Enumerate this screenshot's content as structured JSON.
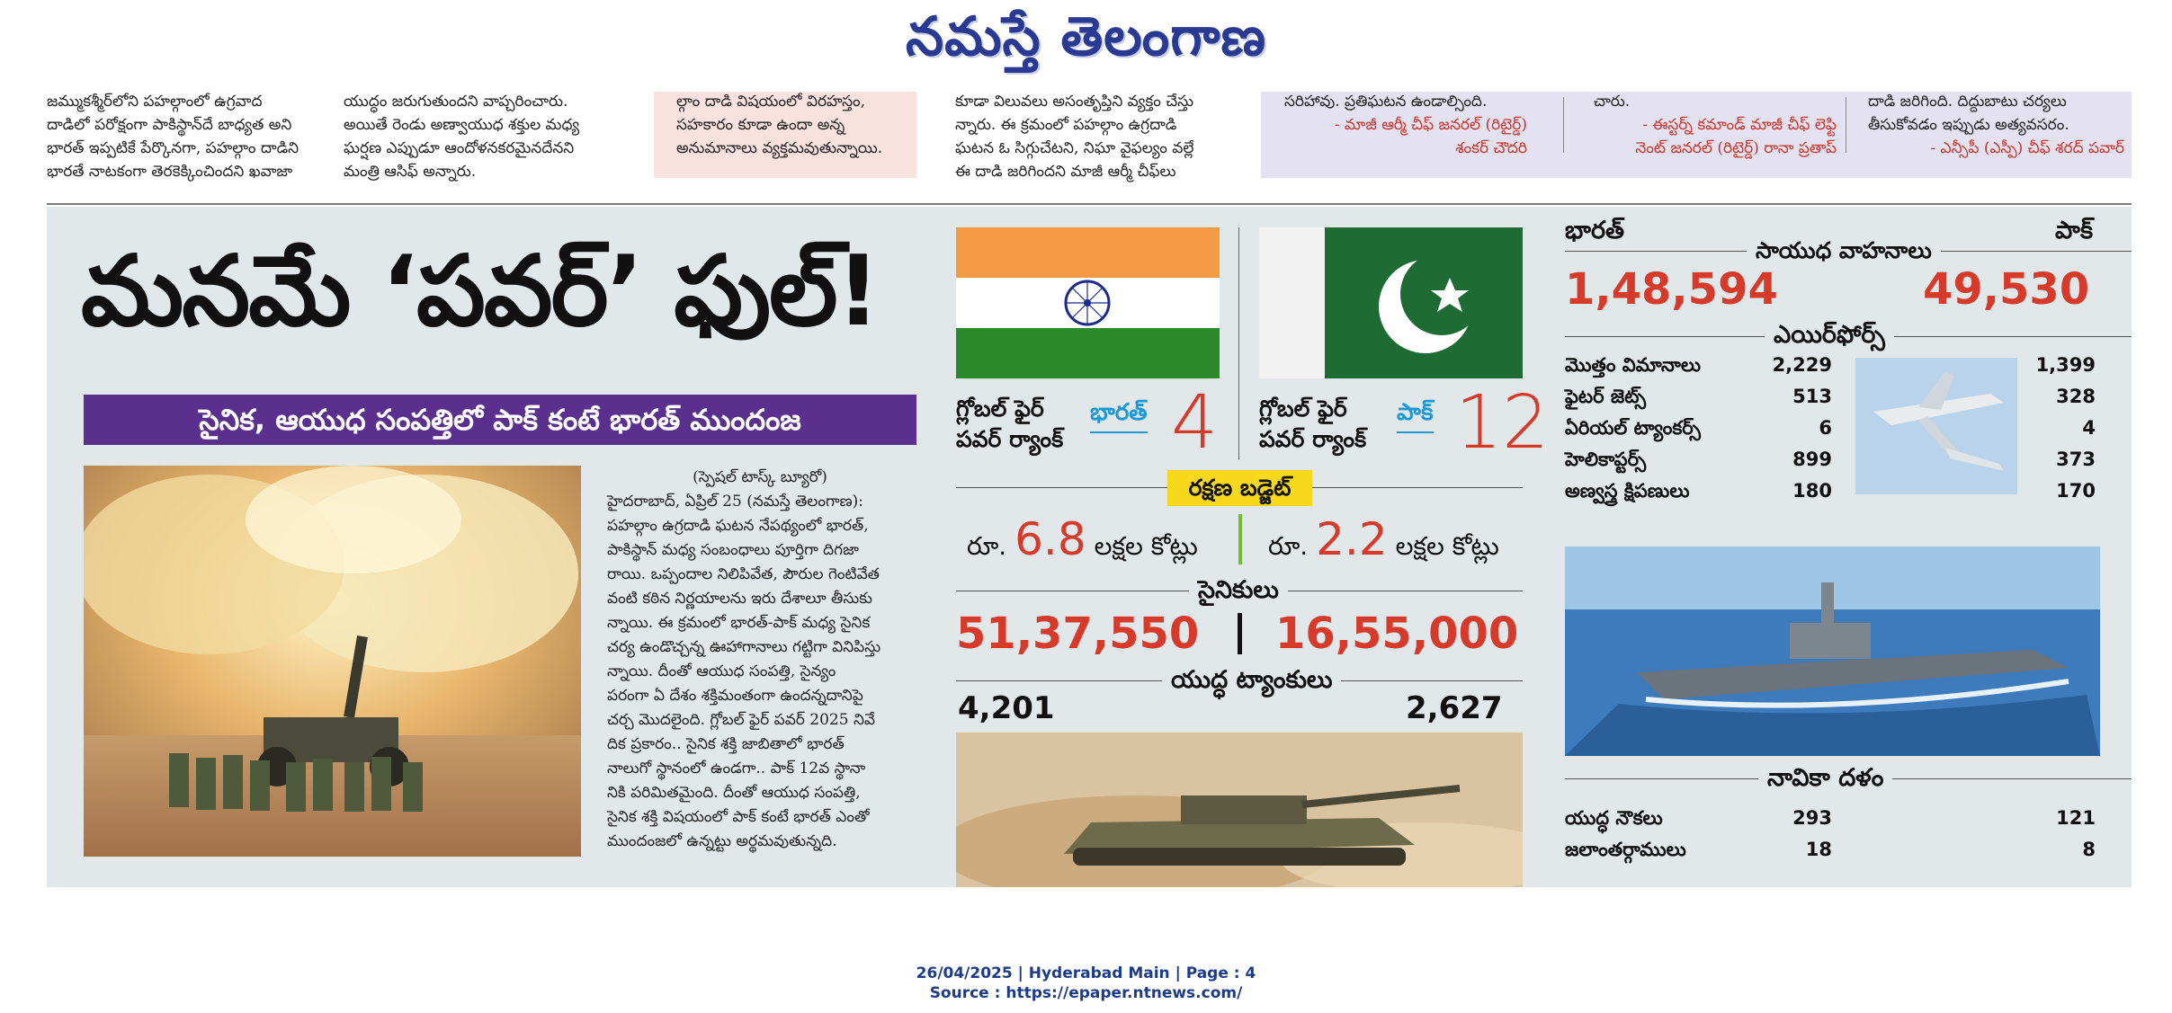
{
  "masthead": {
    "title": "నమస్తే తెలంగాణ"
  },
  "top_strip": {
    "col1": [
      "జమ్ముకశ్మీర్‌లోని పహల్గాంలో ఉగ్రవాద",
      "దాడిలో పరోక్షంగా పాకిస్థాన్‌దే బాధ్యత అని",
      "భారత్ ఇప్పటికే పేర్కొనగా, పహల్గాం దాడిని",
      "భారతే నాటకంగా తెరకెక్కించిందని ఖవాజా"
    ],
    "col2": [
      "యుద్ధం జరుగుతుందని వాప్చరించారు.",
      "అయితే రెండు అణ్వాయుధ శక్తుల మధ్య",
      "ఘర్షణ ఎప్పుడూ ఆందోళనకరమైనదేనని",
      "మంత్రి ఆసిఫ్ అన్నారు."
    ],
    "col3": [
      "ల్గాం దాడి విషయంలో విరహస్తం,",
      "సహకారం కూడా ఉందా అన్న",
      "అనుమానాలు వ్యక్తమవుతున్నాయి."
    ],
    "col4": [
      "కూడా విలువలు అసంతృప్తిని వ్యక్తం చేస్తు",
      "న్నారు. ఈ క్రమంలో పహల్గాం ఉగ్రదాడి",
      "ఘటన ఓ సిగ్గుచేటని, నిఘా వైఫల్యం వల్లే",
      "ఈ దాడి జరిగిందని మాజీ ఆర్మీ చీఫ్‌లు"
    ],
    "col5_text": "సరిహావు. ప్రతిఘటన ఉండాల్సింది.",
    "col5_author": [
      "- మాజీ ఆర్మీ చీఫ్ జనరల్ (రిటైర్డ్)",
      "శంకర్ చౌదరి"
    ],
    "col6_text": "చారు.",
    "col6_author": [
      "- ఈస్టర్న్ కమాండ్ మాజీ చీఫ్ లెఫ్టి",
      "నెంట్ జనరల్ (రిటైర్డ్) రానా ప్రతాప్"
    ],
    "col7_text": [
      "దాడి జరిగింది. దిద్దుబాటు చర్యలు",
      "తీసుకోవడం ఇప్పుడు అత్యవసరం."
    ],
    "col7_author": [
      "- ఎన్సీపీ (ఎస్పీ) చీఫ్ శరద్ పవార్"
    ]
  },
  "story": {
    "headline": "మనమే ‘పవర్’ ఫుల్!",
    "subheadline": "సైనిక, ఆయుధ సంపత్తిలో పాక్ కంటే భారత్ ముందంజ",
    "byline": "(స్పెషల్ టాస్క్ బ్యూరో)",
    "body_lines": [
      "హైదరాబాద్, ఏప్రిల్ 25 (నమస్తే తెలంగాణ):",
      "పహల్గాం ఉగ్రదాడి ఘటన నేపథ్యంలో భారత్,",
      "పాకిస్థాన్ మధ్య సంబంధాలు పూర్తిగా దిగజా",
      "రాయి. ఒప్పందాల నిలిపివేత, పౌరుల గెంటివేత",
      "వంటి కఠిన నిర్ణయాలను ఇరు దేశాలూ తీసుకు",
      "న్నాయి. ఈ క్రమంలో భారత్-పాక్ మధ్య సైనిక",
      "చర్య ఉండొచ్చన్న ఊహాగానాలు గట్టిగా వినిపిస్తు",
      "న్నాయి. దీంతో ఆయుధ సంపత్తి, సైన్యం",
      "పరంగా ఏ దేశం శక్తిమంతంగా ఉందన్నదానిపై",
      "చర్చ మొదలైంది. గ్లోబల్ ఫైర్ పవర్ 2025 నివే",
      "దిక ప్రకారం.. సైనిక శక్తి జాబితాలో భారత్",
      "నాలుగో స్థానంలో ఉండగా.. పాక్ 12వ స్థానా",
      "నికి పరిమితమైంది. దీంతో ఆయుధ సంపత్తి,",
      "సైనిక శక్తి విషయంలో పాక్ కంటే భారత్ ఎంతో",
      "ముందంజలో ఉన్నట్టు అర్థమవుతున్నది."
    ]
  },
  "ranking": {
    "label_line1": "గ్లోబల్ ఫైర్",
    "label_line2": "పవర్ ర్యాంక్",
    "india_name": "భారత్",
    "india_rank": "4",
    "pak_name": "పాక్",
    "pak_rank": "12"
  },
  "budget": {
    "tag": "రక్షణ బడ్జెట్",
    "prefix": "రూ.",
    "india_value": "6.8",
    "pak_value": "2.2",
    "unit": "లక్షల కోట్లు"
  },
  "soldiers": {
    "label": "సైనికులు",
    "india": "51,37,550",
    "pak": "16,55,000"
  },
  "tanks": {
    "label": "యుద్ధ ట్యాంకులు",
    "india": "4,201",
    "pak": "2,627"
  },
  "armed_vehicles": {
    "india_label": "భారత్",
    "pak_label": "పాక్",
    "label": "సాయుధ వాహనాలు",
    "india": "1,48,594",
    "pak": "49,530"
  },
  "airforce": {
    "label": "ఎయిర్‌ఫోర్స్",
    "rows": [
      {
        "name": "మొత్తం విమానాలు",
        "india": "2,229",
        "pak": "1,399"
      },
      {
        "name": "ఫైటర్ జెట్స్",
        "india": "513",
        "pak": "328"
      },
      {
        "name": "ఏరియల్ ట్యాంకర్స్",
        "india": "6",
        "pak": "4"
      },
      {
        "name": "హెలికాప్టర్స్",
        "india": "899",
        "pak": "373"
      },
      {
        "name": "అణ్వస్త్ర క్షిపణులు",
        "india": "180",
        "pak": "170"
      }
    ]
  },
  "navy": {
    "label": "నావికా దళం",
    "rows": [
      {
        "name": "యుద్ధ నౌకలు",
        "india": "293",
        "pak": "121"
      },
      {
        "name": "జలాంతర్గాములు",
        "india": "18",
        "pak": "8"
      }
    ]
  },
  "footer": {
    "line1": "26/04/2025 | Hyderabad Main | Page : 4",
    "line2": "Source : https://epaper.ntnews.com/"
  },
  "colors": {
    "accent_red": "#d63a2a",
    "purple_bar": "#5a2f8e",
    "budget_yellow": "#f7d81a",
    "link_blue": "#1d9ad6"
  }
}
